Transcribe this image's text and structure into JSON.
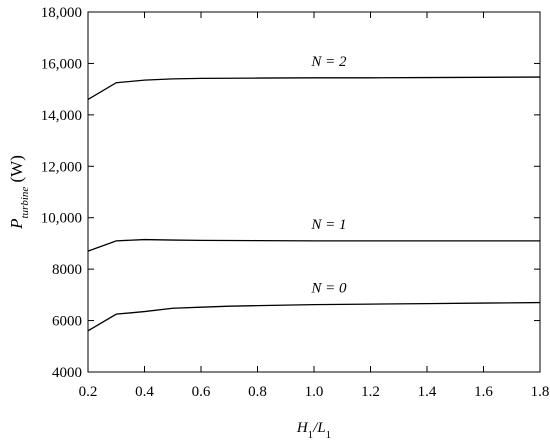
{
  "chart_data": {
    "type": "line",
    "x": [
      0.2,
      0.3,
      0.4,
      0.5,
      0.6,
      0.7,
      0.8,
      1.0,
      1.2,
      1.4,
      1.6,
      1.8
    ],
    "series": [
      {
        "name": "N = 0",
        "color": "#000000",
        "values": [
          5600,
          6250,
          6350,
          6480,
          6520,
          6560,
          6580,
          6620,
          6640,
          6660,
          6680,
          6700
        ]
      },
      {
        "name": "N = 1",
        "color": "#000000",
        "values": [
          8700,
          9100,
          9150,
          9130,
          9120,
          9115,
          9110,
          9100,
          9100,
          9100,
          9100,
          9100
        ]
      },
      {
        "name": "N = 2",
        "color": "#000000",
        "values": [
          14600,
          15250,
          15350,
          15400,
          15420,
          15425,
          15430,
          15440,
          15440,
          15450,
          15460,
          15470
        ]
      }
    ],
    "xlabel": [
      "H",
      "1",
      "/L",
      "1"
    ],
    "ylabel": [
      "P",
      "turbine",
      " (W)"
    ],
    "xlim": [
      0.2,
      1.8
    ],
    "xticks": [
      0.2,
      0.4,
      0.6,
      0.8,
      {
        "value": 1,
        "label": "1.0"
      },
      1.2,
      1.4,
      1.6,
      1.8
    ],
    "ylim": [
      4000,
      18000
    ],
    "yticks": [
      4000,
      6000,
      8000,
      {
        "value": 10000,
        "label": "10,000"
      },
      {
        "value": 12000,
        "label": "12,000"
      },
      {
        "value": 14000,
        "label": "14,000"
      },
      {
        "value": 16000,
        "label": "16,000"
      },
      {
        "value": 18000,
        "label": "18,000"
      }
    ],
    "grid": false
  }
}
